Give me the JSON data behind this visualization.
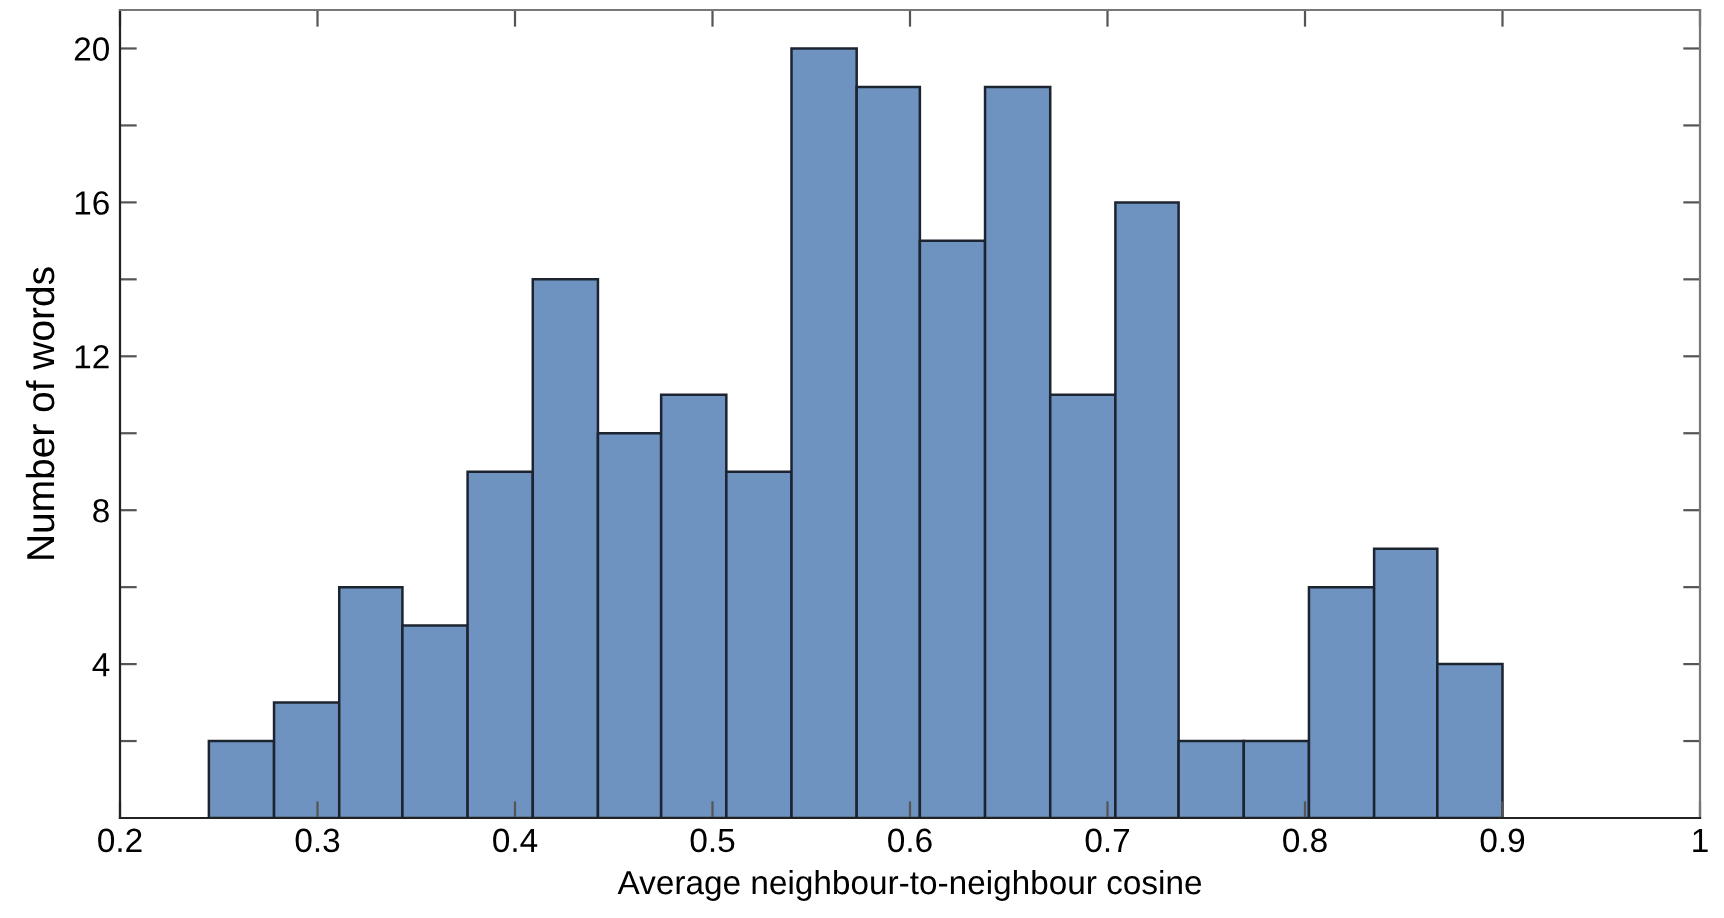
{
  "chart_data": {
    "type": "histogram",
    "xlabel": "Average neighbour-to-neighbour cosine",
    "ylabel": "Number of words",
    "bins": [
      0.245,
      0.278,
      0.311,
      0.343,
      0.376,
      0.409,
      0.442,
      0.474,
      0.507,
      0.54,
      0.573,
      0.605,
      0.638,
      0.671,
      0.704,
      0.736,
      0.769,
      0.802,
      0.835,
      0.867,
      0.9
    ],
    "values": [
      2,
      3,
      6,
      5,
      9,
      14,
      10,
      11,
      9,
      20,
      19,
      15,
      19,
      11,
      16,
      2,
      2,
      6,
      7,
      4
    ],
    "color": "#6f93c0",
    "xlim": [
      0.2,
      1.0
    ],
    "xticks": [
      0.2,
      0.3,
      0.4,
      0.5,
      0.6,
      0.7,
      0.8,
      0.9,
      {
        "value": 1.0,
        "label": "1"
      }
    ],
    "ylim": [
      0,
      21
    ],
    "yticks": [
      {
        "value": 2,
        "label": null
      },
      4,
      {
        "value": 6,
        "label": null
      },
      8,
      {
        "value": 10,
        "label": null
      },
      12,
      {
        "value": 14,
        "label": null
      },
      16,
      {
        "value": 18,
        "label": null
      },
      20
    ],
    "grid": false
  }
}
